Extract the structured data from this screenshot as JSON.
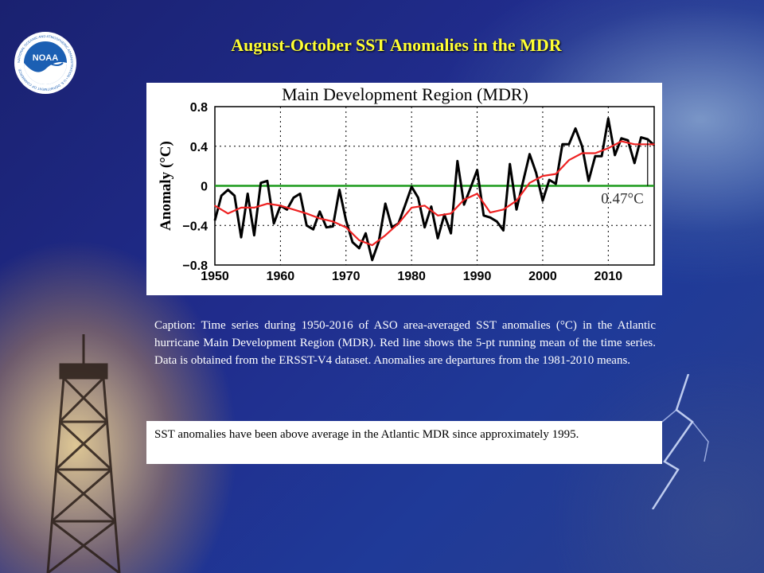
{
  "slide": {
    "title": "August-October SST Anomalies in the MDR",
    "caption": "Caption: Time series during 1950-2016 of ASO area-averaged SST anomalies (°C) in the Atlantic hurricane Main Development Region (MDR). Red line shows the 5-pt running mean of the time series. Data is obtained from the ERSST-V4 dataset. Anomalies are departures from the 1981-2010 means.",
    "summary": "SST anomalies have been above average in the Atlantic MDR since approximately 1995.",
    "logo_text": "NOAA",
    "logo_ring_text": "NATIONAL OCEANIC AND ATMOSPHERIC ADMINISTRATION • U.S. DEPARTMENT OF COMMERCE",
    "colors": {
      "title": "#ffff33",
      "background": "#1f2a88",
      "caption": "#ffffff"
    },
    "icons": [
      "noaa-logo",
      "weather-tower",
      "lightning-bolt"
    ]
  },
  "chart_data": {
    "type": "line",
    "title": "Main Development Region (MDR)",
    "xlabel": "",
    "ylabel": "Anomaly (°C)",
    "xlim": [
      1950,
      2017
    ],
    "ylim": [
      -0.8,
      0.8
    ],
    "xticks": [
      1950,
      1960,
      1970,
      1980,
      1990,
      2000,
      2010
    ],
    "yticks": [
      0.8,
      0.4,
      0,
      -0.4,
      -0.8
    ],
    "ytick_labels": [
      "0.8",
      "0.4",
      "0",
      "−0.4",
      "−0.8"
    ],
    "grid": true,
    "annotation": "0.47°C",
    "annotation_year": 2016,
    "annotation_value": 0.47,
    "zero_line_color": "#1a9a1a",
    "series": [
      {
        "color": "#000000",
        "x": [
          1950,
          1951,
          1952,
          1953,
          1954,
          1955,
          1956,
          1957,
          1958,
          1959,
          1960,
          1961,
          1962,
          1963,
          1964,
          1965,
          1966,
          1967,
          1968,
          1969,
          1970,
          1971,
          1972,
          1973,
          1974,
          1975,
          1976,
          1977,
          1978,
          1979,
          1980,
          1981,
          1982,
          1983,
          1984,
          1985,
          1986,
          1987,
          1988,
          1989,
          1990,
          1991,
          1992,
          1993,
          1994,
          1995,
          1996,
          1997,
          1998,
          1999,
          2000,
          2001,
          2002,
          2003,
          2004,
          2005,
          2006,
          2007,
          2008,
          2009,
          2010,
          2011,
          2012,
          2013,
          2014,
          2015,
          2016,
          2017
        ],
        "y": [
          -0.35,
          -0.1,
          -0.04,
          -0.1,
          -0.52,
          -0.08,
          -0.5,
          0.03,
          0.05,
          -0.38,
          -0.2,
          -0.24,
          -0.12,
          -0.08,
          -0.4,
          -0.44,
          -0.26,
          -0.42,
          -0.41,
          -0.04,
          -0.35,
          -0.57,
          -0.63,
          -0.48,
          -0.75,
          -0.56,
          -0.18,
          -0.42,
          -0.38,
          -0.2,
          -0.01,
          -0.12,
          -0.42,
          -0.21,
          -0.53,
          -0.29,
          -0.48,
          0.25,
          -0.19,
          -0.02,
          0.16,
          -0.3,
          -0.32,
          -0.36,
          -0.45,
          0.22,
          -0.24,
          0.04,
          0.32,
          0.13,
          -0.15,
          0.06,
          0.02,
          0.42,
          0.42,
          0.58,
          0.4,
          0.05,
          0.3,
          0.3,
          0.68,
          0.31,
          0.48,
          0.46,
          0.23,
          0.49,
          0.47,
          0.41
        ]
      },
      {
        "color": "#ee2222",
        "x": [
          1950,
          1952,
          1954,
          1956,
          1958,
          1960,
          1962,
          1964,
          1966,
          1968,
          1970,
          1972,
          1974,
          1976,
          1978,
          1980,
          1982,
          1984,
          1986,
          1988,
          1990,
          1992,
          1994,
          1996,
          1998,
          2000,
          2002,
          2004,
          2006,
          2008,
          2010,
          2012,
          2014,
          2017
        ],
        "y": [
          -0.2,
          -0.28,
          -0.22,
          -0.22,
          -0.18,
          -0.2,
          -0.24,
          -0.28,
          -0.33,
          -0.36,
          -0.42,
          -0.55,
          -0.6,
          -0.5,
          -0.38,
          -0.22,
          -0.2,
          -0.3,
          -0.28,
          -0.14,
          -0.08,
          -0.27,
          -0.24,
          -0.15,
          0.03,
          0.1,
          0.12,
          0.26,
          0.33,
          0.33,
          0.38,
          0.45,
          0.42,
          0.42
        ]
      }
    ]
  }
}
